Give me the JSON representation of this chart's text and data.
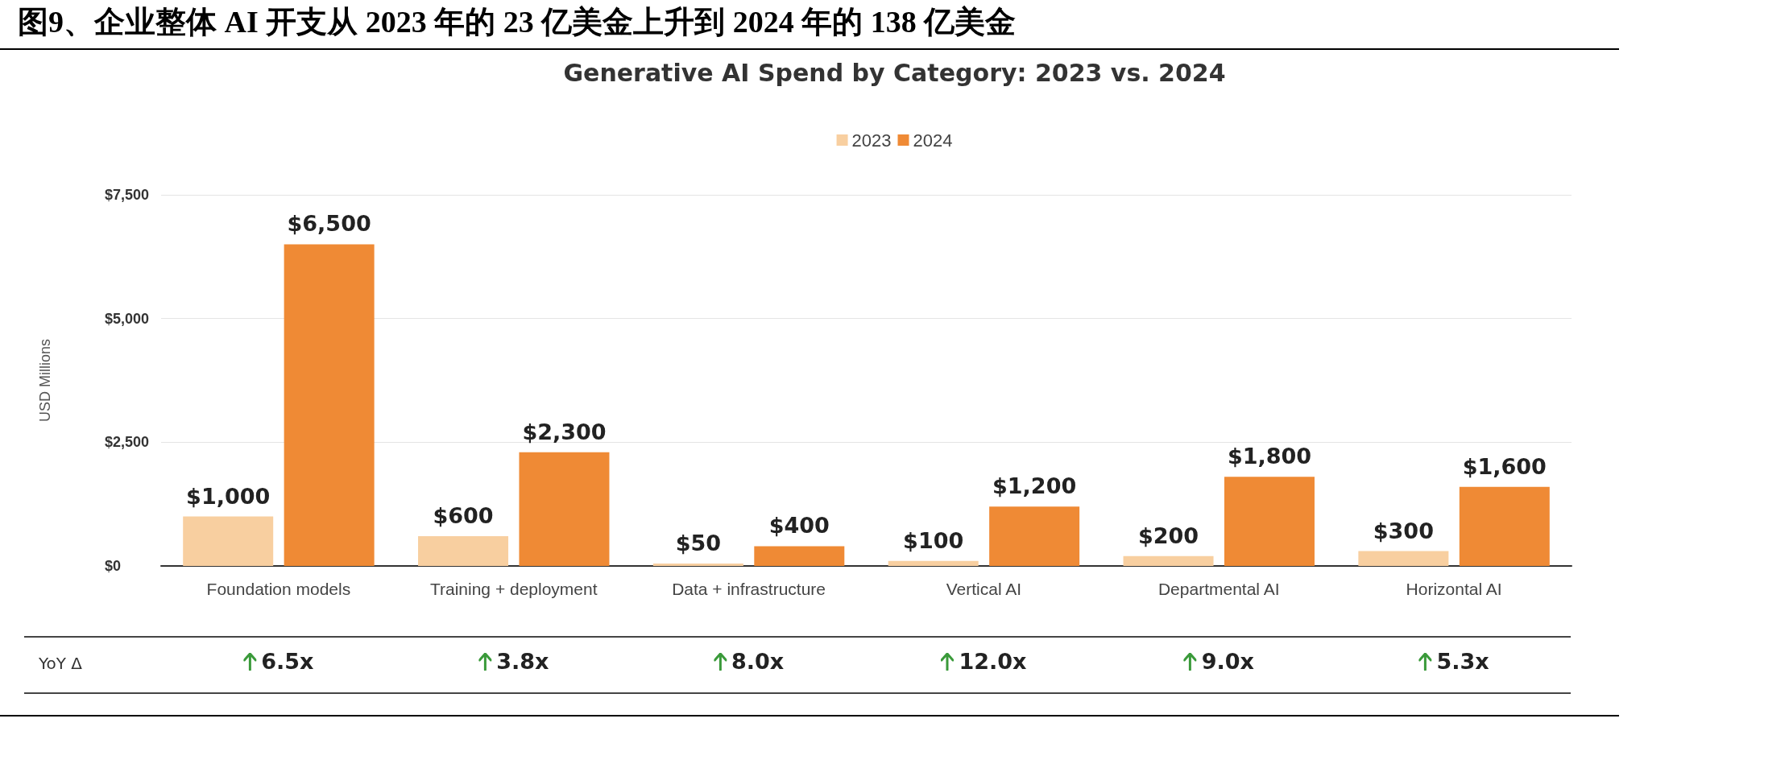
{
  "chart_data": {
    "type": "bar",
    "title": "图9、企业整体 AI 开支从 2023 年的 23 亿美金上升到 2024 年的 138 亿美金",
    "subtitle": "Generative AI Spend by Category: 2023 vs. 2024",
    "ylabel": "USD Millions",
    "categories": [
      "Foundation models",
      "Training + deployment",
      "Data + infrastructure",
      "Vertical AI",
      "Departmental AI",
      "Horizontal AI"
    ],
    "series": [
      {
        "name": "2023",
        "color": "#f8cfa0",
        "values": [
          1000,
          600,
          50,
          100,
          200,
          300
        ],
        "value_labels": [
          "$1,000",
          "$600",
          "$50",
          "$100",
          "$200",
          "$300"
        ]
      },
      {
        "name": "2024",
        "color": "#ef8a35",
        "values": [
          6500,
          2300,
          400,
          1200,
          1800,
          1600
        ],
        "value_labels": [
          "$6,500",
          "$2,300",
          "$400",
          "$1,200",
          "$1,800",
          "$1,600"
        ]
      }
    ],
    "ylim": [
      0,
      7500
    ],
    "yticks": [
      {
        "value": 0,
        "label": "$0"
      },
      {
        "value": 2500,
        "label": "$2,500"
      },
      {
        "value": 5000,
        "label": "$5,000"
      },
      {
        "value": 7500,
        "label": "$7,500"
      }
    ],
    "grid": "y",
    "legend": "top",
    "annotations": [
      "YoY Δ",
      "6.5x",
      "3.8x",
      "8.0x",
      "12.0x",
      "9.0x",
      "5.3x"
    ]
  }
}
